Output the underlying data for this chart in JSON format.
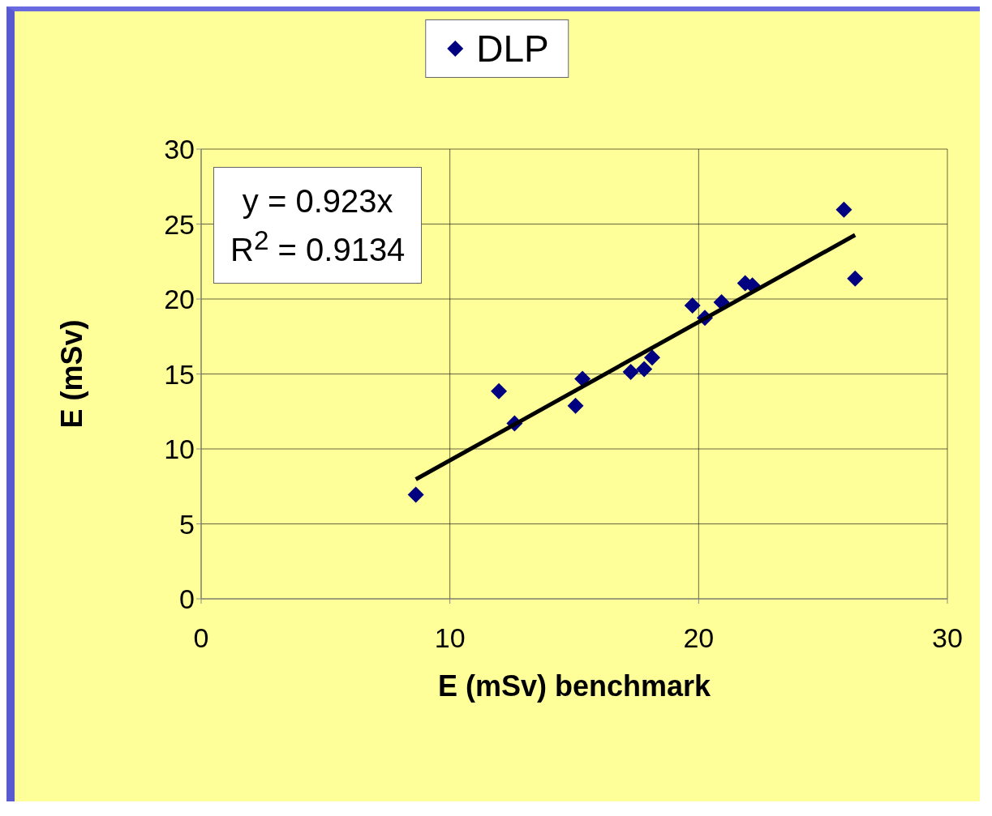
{
  "chart_data": {
    "type": "scatter",
    "xlabel": "E (mSv) benchmark",
    "ylabel": "E (mSv)",
    "xlim": [
      0,
      30
    ],
    "xticks": [
      0,
      10,
      20,
      30
    ],
    "ylim": [
      0,
      30
    ],
    "yticks": [
      0,
      5,
      10,
      15,
      20,
      25,
      30
    ],
    "grid": true,
    "legend": "top",
    "marker": "diamond",
    "annotations": [
      "y = 0.923x",
      "R$^{2}$ = 0.9134"
    ],
    "series": [
      {
        "name": "DLP",
        "color": "#000080",
        "x": [
          8.63,
          11.97,
          12.6,
          15.05,
          15.33,
          17.27,
          17.81,
          18.13,
          19.75,
          20.25,
          20.92,
          21.87,
          22.16,
          25.84,
          26.29
        ],
        "values": [
          6.95,
          13.85,
          11.7,
          12.88,
          14.67,
          15.13,
          15.33,
          16.1,
          19.57,
          18.75,
          19.78,
          21.05,
          20.9,
          25.96,
          21.36
        ]
      },
      {
        "type": "line",
        "color": "#000000",
        "marker": "none",
        "x": [
          8.63,
          26.29
        ],
        "values": [
          7.97,
          24.27
        ]
      }
    ]
  }
}
